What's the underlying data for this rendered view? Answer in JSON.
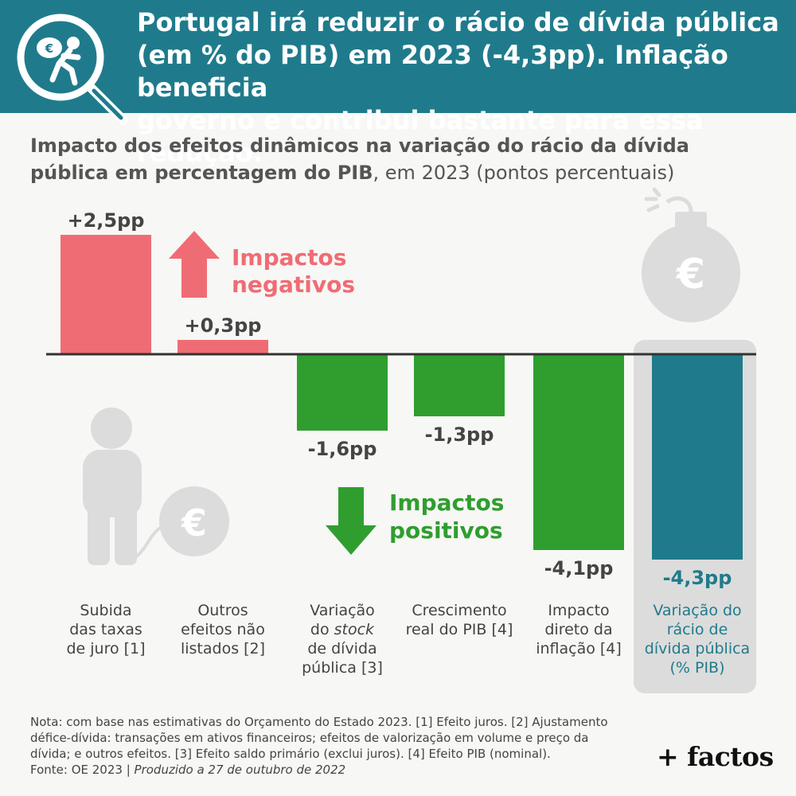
{
  "header": {
    "title_lines": [
      "Portugal irá reduzir o rácio de dívida pública",
      "(em % do PIB) em 2023 (-4,3pp). Inflação beneficia",
      "governo e contribui bastante para essa redução."
    ],
    "icon": "magnifier-with-euro-thief-icon"
  },
  "subtitle": {
    "bold_part": "Impacto dos efeitos dinâmicos na variação do rácio da dívida pública em percentagem do PIB",
    "normal_part": ", em 2023 (pontos percentuais)"
  },
  "chart_data": {
    "type": "bar",
    "categories": [
      "Subida das taxas de juro [1]",
      "Outros efeitos não listados [2]",
      "Variação do stock de dívida pública [3]",
      "Crescimento real do PIB [4]",
      "Impacto direto da inflação [4]",
      "Variação do rácio de dívida pública (% PIB)"
    ],
    "category_lines": [
      [
        "Subida",
        "das taxas",
        "de juro [1]"
      ],
      [
        "Outros",
        "efeitos não",
        "listados [2]"
      ],
      [
        "Variação",
        "do {stock}",
        "de dívida",
        "pública [3]"
      ],
      [
        "Crescimento",
        "real do PIB [4]"
      ],
      [
        "Impacto",
        "direto da",
        "inflação [4]"
      ],
      [
        "Variação do",
        "rácio de",
        "dívida pública",
        "(% PIB)"
      ]
    ],
    "values": [
      2.5,
      0.3,
      -1.6,
      -1.3,
      -4.1,
      -4.3
    ],
    "value_labels": [
      "+2,5pp",
      "+0,3pp",
      "-1,6pp",
      "-1,3pp",
      "-4,1pp",
      "-4,3pp"
    ],
    "ylim": [
      -4.3,
      2.5
    ],
    "grid": false,
    "colors": {
      "negative_impact": "#f06c74",
      "positive_impact": "#2f9e2f",
      "total": "#1f7b8c",
      "axis": "#333333",
      "highlight_bg": "#dcdcdc"
    },
    "annotations": {
      "up_arrow_text": [
        "Impactos",
        "negativos"
      ],
      "down_arrow_text": [
        "Impactos",
        "positivos"
      ]
    }
  },
  "footer": {
    "note_lines": [
      "Nota: com base nas estimativas do Orçamento do Estado 2023. [1] Efeito juros. [2] Ajustamento",
      "défice-dívida: transações em ativos financeiros; efeitos de valorização em volume e preço da",
      "dívida; e outros efeitos. [3] Efeito saldo primário (exclui juros). [4] Efeito PIB (nominal)."
    ],
    "source": "Fonte: OE 2023 | ",
    "produced": "Produzido a 27 de outubro de 2022",
    "brand": "+ factos"
  }
}
